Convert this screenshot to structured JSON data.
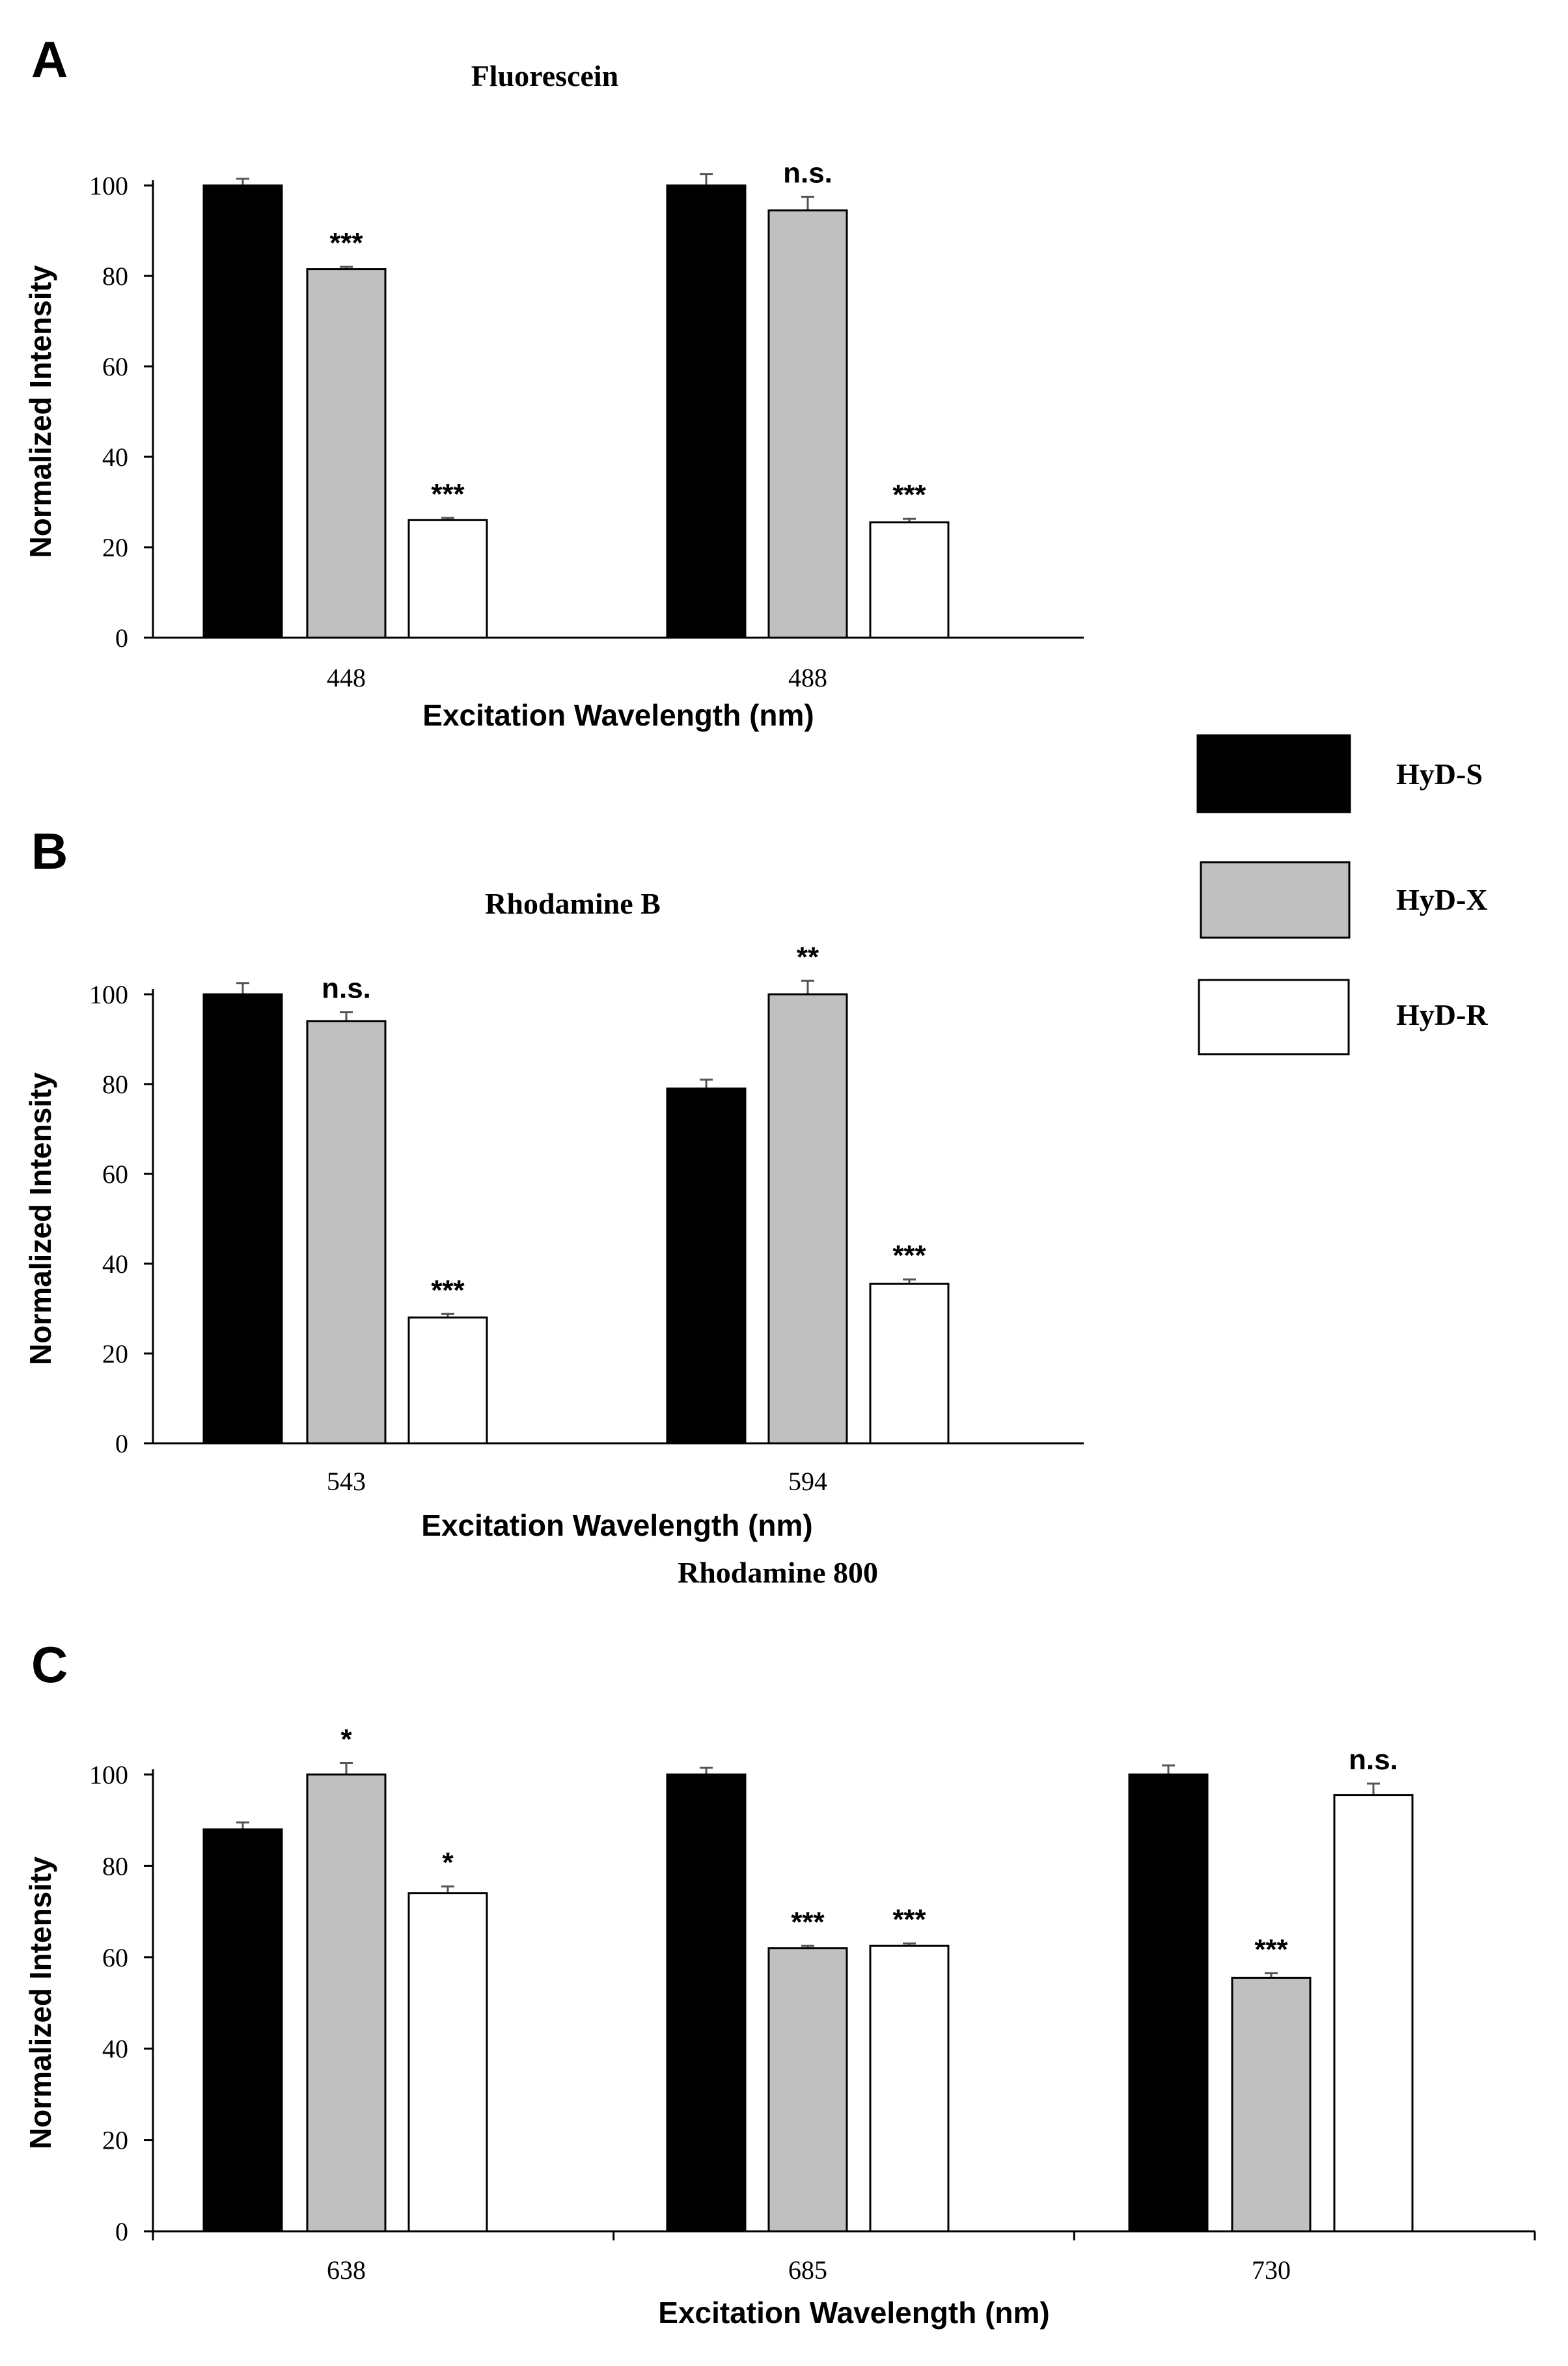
{
  "legend": {
    "items": [
      {
        "label": "HyD-S",
        "color": "#000000"
      },
      {
        "label": "HyD-X",
        "color": "#c0c0c0"
      },
      {
        "label": "HyD-R",
        "color": "#ffffff"
      }
    ]
  },
  "chart_data": [
    {
      "type": "bar",
      "panel": "A",
      "title": "Fluorescein",
      "xlabel": "Excitation Wavelength (nm)",
      "ylabel": "Normalized Intensity",
      "ylim": [
        0,
        100
      ],
      "yticks": [
        0,
        20,
        40,
        60,
        80,
        100
      ],
      "categories": [
        "448",
        "488"
      ],
      "series": [
        {
          "name": "HyD-S",
          "values": [
            100,
            100
          ],
          "errors": [
            1.5,
            2.5
          ],
          "sig": [
            "",
            ""
          ]
        },
        {
          "name": "HyD-X",
          "values": [
            81.5,
            94.5
          ],
          "errors": [
            0.5,
            3
          ],
          "sig": [
            "***",
            "n.s."
          ]
        },
        {
          "name": "HyD-R",
          "values": [
            26,
            25.5
          ],
          "errors": [
            0.5,
            0.8
          ],
          "sig": [
            "***",
            "***"
          ]
        }
      ]
    },
    {
      "type": "bar",
      "panel": "B",
      "title": "Rhodamine B",
      "xlabel": "Excitation Wavelength (nm)",
      "ylabel": "Normalized Intensity",
      "ylim": [
        0,
        100
      ],
      "yticks": [
        0,
        20,
        40,
        60,
        80,
        100
      ],
      "categories": [
        "543",
        "594"
      ],
      "series": [
        {
          "name": "HyD-S",
          "values": [
            100,
            79
          ],
          "errors": [
            2.5,
            2
          ],
          "sig": [
            "",
            ""
          ]
        },
        {
          "name": "HyD-X",
          "values": [
            94,
            100
          ],
          "errors": [
            2,
            3
          ],
          "sig": [
            "n.s.",
            "**"
          ]
        },
        {
          "name": "HyD-R",
          "values": [
            28,
            35.5
          ],
          "errors": [
            0.8,
            1
          ],
          "sig": [
            "***",
            "***"
          ]
        }
      ]
    },
    {
      "type": "bar",
      "panel": "C",
      "title": "Rhodamine 800",
      "xlabel": "Excitation Wavelength (nm)",
      "ylabel": "Normalized Intensity",
      "ylim": [
        0,
        100
      ],
      "yticks": [
        0,
        20,
        40,
        60,
        80,
        100
      ],
      "categories": [
        "638",
        "685",
        "730"
      ],
      "series": [
        {
          "name": "HyD-S",
          "values": [
            88,
            100,
            100
          ],
          "errors": [
            1.5,
            1.5,
            2
          ],
          "sig": [
            "",
            "",
            ""
          ]
        },
        {
          "name": "HyD-X",
          "values": [
            100,
            62,
            55.5
          ],
          "errors": [
            2.5,
            0.5,
            1
          ],
          "sig": [
            "*",
            "***",
            "***"
          ]
        },
        {
          "name": "HyD-R",
          "values": [
            74,
            62.5,
            95.5
          ],
          "errors": [
            1.5,
            0.5,
            2.5
          ],
          "sig": [
            "*",
            "***",
            "n.s."
          ]
        }
      ]
    }
  ]
}
